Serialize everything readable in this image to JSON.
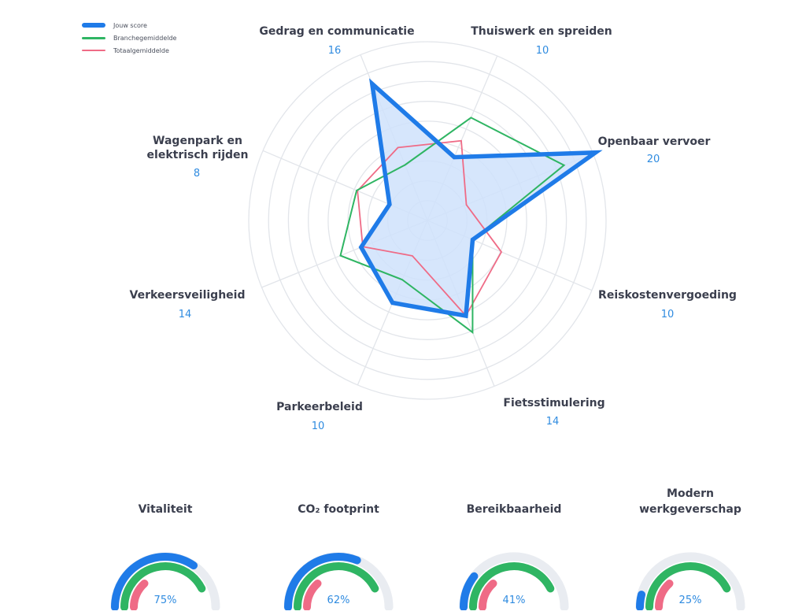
{
  "chart_data": [
    {
      "type": "radar",
      "axes": [
        {
          "label": "Gedrag en communicatie",
          "value_label": "16"
        },
        {
          "label": "Thuiswerk en spreiden",
          "value_label": "10"
        },
        {
          "label": "Openbaar vervoer",
          "value_label": "20"
        },
        {
          "label": "Reiskostenvergoeding",
          "value_label": "10"
        },
        {
          "label": "Fietsstimulering",
          "value_label": "14"
        },
        {
          "label": "Parkeerbeleid",
          "value_label": "10"
        },
        {
          "label": "Verkeersveiligheid",
          "value_label": "14"
        },
        {
          "label": "Wagenpark en\nelektrisch rijden",
          "value_label": "8"
        }
      ],
      "max": 20,
      "rings": 9,
      "series": [
        {
          "name": "Totaalgemiddelde",
          "color": "#ef6b86",
          "values": [
            8.8,
            9.7,
            4.7,
            9.0,
            11.5,
            4.3,
            7.8,
            8.5
          ]
        },
        {
          "name": "Branchegemiddelde",
          "color": "#2fb563",
          "values": [
            6.7,
            12.5,
            16.5,
            5.5,
            13.5,
            7.2,
            10.5,
            8.6
          ]
        },
        {
          "name": "Jouw score",
          "color": "#1f7be8",
          "fill": "#cfe2fb",
          "values": [
            16.5,
            7.7,
            20.3,
            5.5,
            11.5,
            10.0,
            8.0,
            4.6
          ]
        }
      ],
      "legend_position": "top-left"
    },
    {
      "type": "gauge",
      "items": [
        {
          "title": "Vitaliteit",
          "value": 75,
          "value_label": "75%",
          "blue": 0.69,
          "green": 0.85,
          "red": 0.27
        },
        {
          "title": "CO₂ footprint",
          "value": 62,
          "value_label": "62%",
          "blue": 0.62,
          "green": 0.85,
          "red": 0.27
        },
        {
          "title": "Bereikbaarheid",
          "value": 41,
          "value_label": "41%",
          "blue": 0.21,
          "green": 0.85,
          "red": 0.27
        },
        {
          "title": "Modern\nwerkgeverschap",
          "value": 25,
          "value_label": "25%",
          "blue": 0.08,
          "green": 0.85,
          "red": 0.27
        }
      ],
      "colors": {
        "blue": "#1f7be8",
        "green": "#2fb563",
        "red": "#ef6b86",
        "track": "#e9ecf1"
      }
    }
  ]
}
